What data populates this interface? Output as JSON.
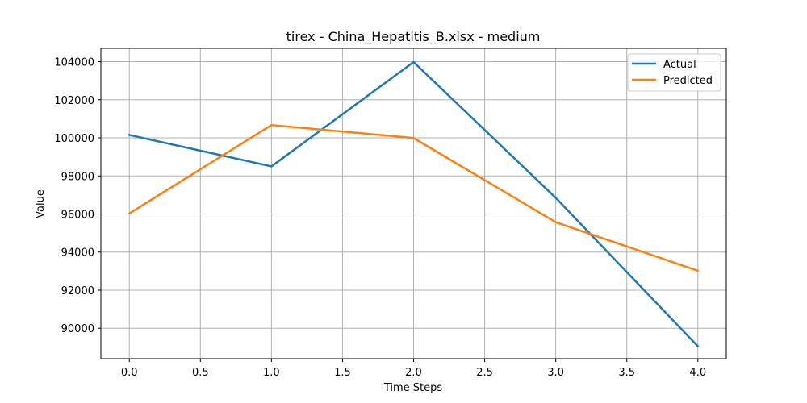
{
  "chart_data": {
    "type": "line",
    "title": "tirex - China_Hepatitis_B.xlsx - medium",
    "xlabel": "Time Steps",
    "ylabel": "Value",
    "x": [
      0,
      1,
      2,
      3,
      4
    ],
    "xlim": [
      -0.2,
      4.2
    ],
    "ylim": [
      88400,
      104700
    ],
    "xticks": [
      0.0,
      0.5,
      1.0,
      1.5,
      2.0,
      2.5,
      3.0,
      3.5,
      4.0
    ],
    "xtick_labels": [
      "0.0",
      "0.5",
      "1.0",
      "1.5",
      "2.0",
      "2.5",
      "3.0",
      "3.5",
      "4.0"
    ],
    "yticks": [
      90000,
      92000,
      94000,
      96000,
      98000,
      100000,
      102000,
      104000
    ],
    "ytick_labels": [
      "90000",
      "92000",
      "94000",
      "96000",
      "98000",
      "100000",
      "102000",
      "104000"
    ],
    "grid": true,
    "legend_position": "top-right",
    "series": [
      {
        "name": "Actual",
        "color": "#1f77b4",
        "values": [
          100150,
          98500,
          103980,
          96850,
          89050
        ]
      },
      {
        "name": "Predicted",
        "color": "#ff7f0e",
        "values": [
          96030,
          100670,
          99990,
          95570,
          93020
        ]
      }
    ]
  }
}
